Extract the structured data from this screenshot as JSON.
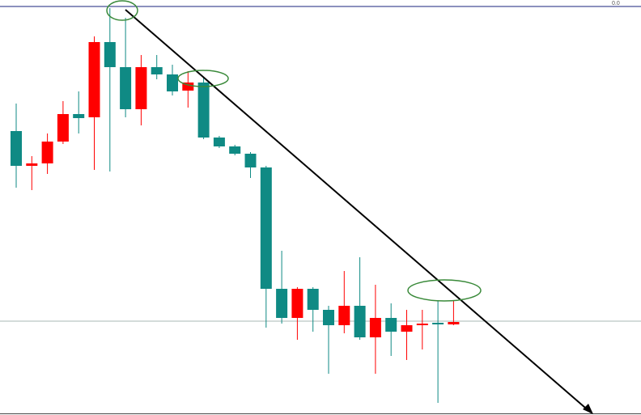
{
  "chart_data": {
    "type": "candlestick",
    "corner_label": "0.0",
    "up_color": "#ff0000",
    "down_color": "#0f8a84",
    "ylim": [
      0,
      513
    ],
    "reference_line": 116,
    "candles": [
      {
        "open": 351,
        "high": 385,
        "low": 281,
        "close": 308
      },
      {
        "open": 308,
        "high": 320,
        "low": 278,
        "close": 311
      },
      {
        "open": 311,
        "high": 348,
        "low": 298,
        "close": 338
      },
      {
        "open": 338,
        "high": 388,
        "low": 335,
        "close": 372
      },
      {
        "open": 372,
        "high": 400,
        "low": 348,
        "close": 367
      },
      {
        "open": 368,
        "high": 468,
        "low": 303,
        "close": 461
      },
      {
        "open": 461,
        "high": 503,
        "low": 301,
        "close": 430
      },
      {
        "open": 430,
        "high": 491,
        "low": 368,
        "close": 378
      },
      {
        "open": 378,
        "high": 445,
        "low": 358,
        "close": 430
      },
      {
        "open": 430,
        "high": 445,
        "low": 415,
        "close": 421
      },
      {
        "open": 421,
        "high": 433,
        "low": 395,
        "close": 400
      },
      {
        "open": 401,
        "high": 425,
        "low": 380,
        "close": 411
      },
      {
        "open": 411,
        "high": 418,
        "low": 341,
        "close": 343
      },
      {
        "open": 343,
        "high": 345,
        "low": 330,
        "close": 332
      },
      {
        "open": 332,
        "high": 334,
        "low": 321,
        "close": 323
      },
      {
        "open": 323,
        "high": 325,
        "low": 293,
        "close": 306
      },
      {
        "open": 306,
        "high": 308,
        "low": 108,
        "close": 156
      },
      {
        "open": 156,
        "high": 203,
        "low": 113,
        "close": 120
      },
      {
        "open": 120,
        "high": 158,
        "low": 93,
        "close": 156
      },
      {
        "open": 156,
        "high": 158,
        "low": 103,
        "close": 130
      },
      {
        "open": 130,
        "high": 135,
        "low": 51,
        "close": 111
      },
      {
        "open": 111,
        "high": 178,
        "low": 101,
        "close": 135
      },
      {
        "open": 135,
        "high": 195,
        "low": 93,
        "close": 96
      },
      {
        "open": 96,
        "high": 161,
        "low": 51,
        "close": 120
      },
      {
        "open": 120,
        "high": 138,
        "low": 73,
        "close": 103
      },
      {
        "open": 103,
        "high": 130,
        "low": 68,
        "close": 111
      },
      {
        "open": 111,
        "high": 130,
        "low": 81,
        "close": 113
      },
      {
        "open": 114,
        "high": 141,
        "low": 15,
        "close": 113
      },
      {
        "open": 112,
        "high": 141,
        "low": 111,
        "close": 115
      }
    ]
  }
}
